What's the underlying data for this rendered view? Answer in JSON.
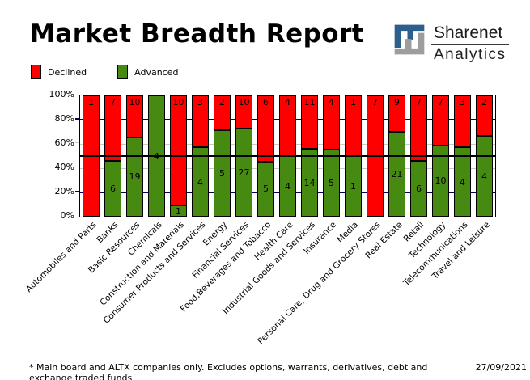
{
  "header": {
    "title": "Market Breadth Report",
    "logo": {
      "name": "Sharenet",
      "subtitle": "Analytics",
      "blue": "#2D5F8E",
      "gray": "#9D9D9D"
    }
  },
  "legend": {
    "items": [
      {
        "label": "Declined",
        "color": "#FF0000"
      },
      {
        "label": "Advanced",
        "color": "#478A12"
      }
    ]
  },
  "chart_data": {
    "type": "bar",
    "stacked": true,
    "normalized_to_percent": true,
    "title": "Market Breadth Report",
    "categories": [
      "Automobiles and Parts",
      "Banks",
      "Basic Resources",
      "Chemicals",
      "Construction and Materials",
      "Consumer Products and Services",
      "Energy",
      "Financial Services",
      "Food,Beverages and Tobacco",
      "Health Care",
      "Industrial Goods and Services",
      "Insurance",
      "Media",
      "Personal Care, Drug and Grocery Stores",
      "Real Estate",
      "Retail",
      "Technology",
      "Telecommunications",
      "Travel and Leisure"
    ],
    "series": [
      {
        "name": "Declined",
        "color": "#FF0000",
        "values": [
          1,
          7,
          10,
          0,
          10,
          3,
          2,
          10,
          6,
          4,
          11,
          4,
          1,
          7,
          9,
          7,
          7,
          3,
          2
        ]
      },
      {
        "name": "Advanced",
        "color": "#478A12",
        "values": [
          0,
          6,
          19,
          4,
          1,
          4,
          5,
          27,
          5,
          4,
          14,
          5,
          1,
          0,
          21,
          6,
          10,
          4,
          4
        ]
      }
    ],
    "y_ticks": [
      "100%",
      "80%",
      "60%",
      "40%",
      "20%",
      "0%"
    ],
    "ylim": [
      0,
      100
    ],
    "gridlines": [
      {
        "percent": 80,
        "color": "#000066",
        "weight": 2
      },
      {
        "percent": 60,
        "color": "#C8C8C8",
        "weight": 1
      },
      {
        "percent": 40,
        "color": "#C8C8C8",
        "weight": 1
      },
      {
        "percent": 20,
        "color": "#000066",
        "weight": 2
      }
    ],
    "reference_line": {
      "percent": 50,
      "color": "#000000"
    },
    "legend_position": "top-left"
  },
  "footer": {
    "note": "* Main board and ALTX companies only. Excludes options, warrants, derivatives, debt and exchange traded funds",
    "date": "27/09/2021"
  }
}
